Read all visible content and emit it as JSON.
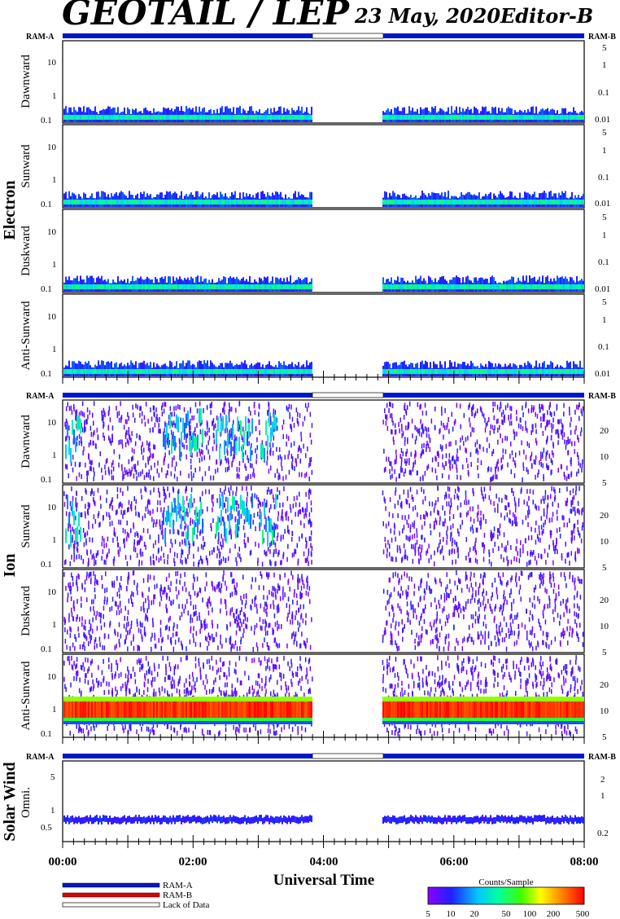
{
  "header": {
    "title": "GEOTAIL / LEP",
    "date": "23 May, 2020",
    "editor": "Editor-B"
  },
  "ram_labels": {
    "left": "RAM-A",
    "right": "RAM-B"
  },
  "groups": [
    {
      "name": "Electron"
    },
    {
      "name": "Ion"
    },
    {
      "name": "Solar Wind"
    }
  ],
  "panels": [
    {
      "label": "Dawnward",
      "group": "Electron",
      "left_ticks": [
        "10",
        "1",
        "0.1"
      ],
      "right_ticks": [
        "5",
        "1",
        "0.1",
        "0.01"
      ]
    },
    {
      "label": "Sunward",
      "group": "Electron",
      "left_ticks": [
        "10",
        "1",
        "0.1"
      ],
      "right_ticks": [
        "5",
        "1",
        "0.1",
        "0.01"
      ]
    },
    {
      "label": "Duskward",
      "group": "Electron",
      "left_ticks": [
        "10",
        "1",
        "0.1"
      ],
      "right_ticks": [
        "5",
        "1",
        "0.1",
        "0.01"
      ]
    },
    {
      "label": "Anti-Sunward",
      "group": "Electron",
      "left_ticks": [
        "10",
        "1",
        "0.1"
      ],
      "right_ticks": [
        "5",
        "1",
        "0.1",
        "0.01"
      ]
    },
    {
      "label": "Dawnward",
      "group": "Ion",
      "left_ticks": [
        "10",
        "1",
        "0.1"
      ],
      "right_ticks": [
        "20",
        "10",
        "5"
      ]
    },
    {
      "label": "Sunward",
      "group": "Ion",
      "left_ticks": [
        "10",
        "1",
        "0.1"
      ],
      "right_ticks": [
        "20",
        "10",
        "5"
      ]
    },
    {
      "label": "Duskward",
      "group": "Ion",
      "left_ticks": [
        "10",
        "1",
        "0.1"
      ],
      "right_ticks": [
        "20",
        "10",
        "5"
      ]
    },
    {
      "label": "Anti-Sunward",
      "group": "Ion",
      "left_ticks": [
        "10",
        "1",
        "0.1"
      ],
      "right_ticks": [
        "20",
        "10",
        "5"
      ]
    },
    {
      "label": "Omni.",
      "group": "Solar Wind",
      "left_ticks": [
        "5",
        "1",
        "0.5"
      ],
      "right_ticks": [
        "2",
        "1",
        "0.2"
      ]
    }
  ],
  "x_axis": {
    "label": "Universal Time",
    "ticks": [
      "00:00",
      "02:00",
      "04:00",
      "06:00",
      "08:00"
    ]
  },
  "legend": {
    "items": [
      {
        "label": "RAM-A",
        "color": "#0018c8"
      },
      {
        "label": "RAM-B",
        "color": "#e00000"
      },
      {
        "label": "Lack of Data",
        "color": "#ffffff"
      }
    ]
  },
  "colorbar": {
    "title": "Counts/Sample",
    "ticks": [
      "5",
      "10",
      "20",
      "50",
      "100",
      "200",
      "500"
    ]
  },
  "chart_data": {
    "type": "heatmap",
    "x_range_hours": [
      0,
      8
    ],
    "data_gap_hours": [
      3.82,
      4.9
    ],
    "ram_mode": "RAM-A",
    "color_scale": "log",
    "color_range": [
      5,
      500
    ]
  }
}
